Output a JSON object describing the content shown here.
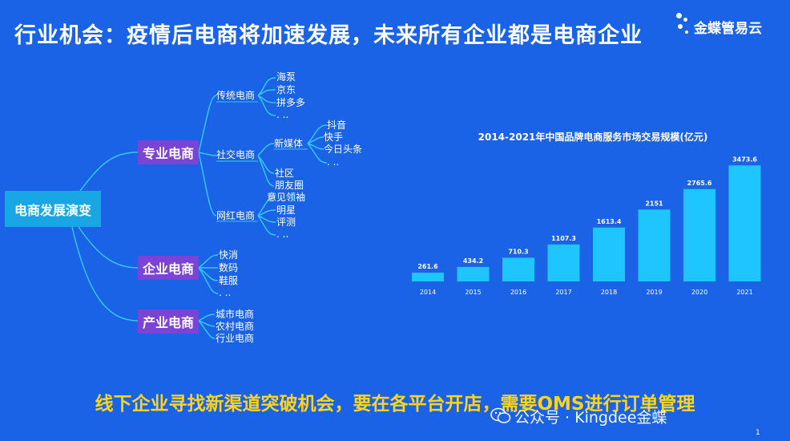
{
  "title": "行业机会：疫情后电商将加速发展，未来所有企业都是电商企业",
  "brand": {
    "name": "金蝶管易云",
    "logo_icon": "kingdee-dots-logo-icon"
  },
  "mindmap": {
    "root": "电商发展演变",
    "nodes": [
      {
        "label": "专业电商"
      },
      {
        "label": "企业电商"
      },
      {
        "label": "产业电商"
      }
    ],
    "professional": {
      "traditional": {
        "label": "传统电商",
        "items": [
          "海泵",
          "京东",
          "拼多多",
          ". .."
        ]
      },
      "social": {
        "label": "社交电商",
        "new_media": {
          "label": "新媒体",
          "items": [
            "抖音",
            "快手",
            "今日头条",
            ". .."
          ]
        },
        "items": [
          "社区",
          "朋友圈"
        ]
      },
      "influencer": {
        "label": "网红电商",
        "items": [
          "意见领袖",
          "明星",
          "评测",
          ". .."
        ]
      }
    },
    "enterprise": {
      "items": [
        "快消",
        "数码",
        "鞋服",
        ". .."
      ]
    },
    "industry": {
      "items": [
        "城市电商",
        "农村电商",
        "行业电商"
      ]
    }
  },
  "chart_data": {
    "type": "bar",
    "title": "2014-2021年中国品牌电商服务市场交易规模(亿元)",
    "categories": [
      "2014",
      "2015",
      "2016",
      "2017",
      "2018",
      "2019",
      "2020",
      "2021"
    ],
    "values": [
      261.6,
      434.2,
      710.3,
      1107.3,
      1613.4,
      2151,
      2765.6,
      3473.6
    ],
    "value_labels": [
      "261.6",
      "434.2",
      "710.3",
      "1107.3",
      "1613.4",
      "2151",
      "2765.6",
      "3473.6"
    ],
    "ylim": [
      0,
      3600
    ],
    "grid": false,
    "bar_color": "#1ec5ff"
  },
  "bottom_text": "线下企业寻找新渠道突破机会，要在各平台开店，需要OMS进行订单管理",
  "watermark": "公众号 · Kingdee金蝶",
  "page_number": "1",
  "colors": {
    "background": "#1a63e6",
    "root": "#18a7e4",
    "node": "#7b44d4",
    "highlight": "#ffd41c",
    "line": "#35c6f2"
  }
}
